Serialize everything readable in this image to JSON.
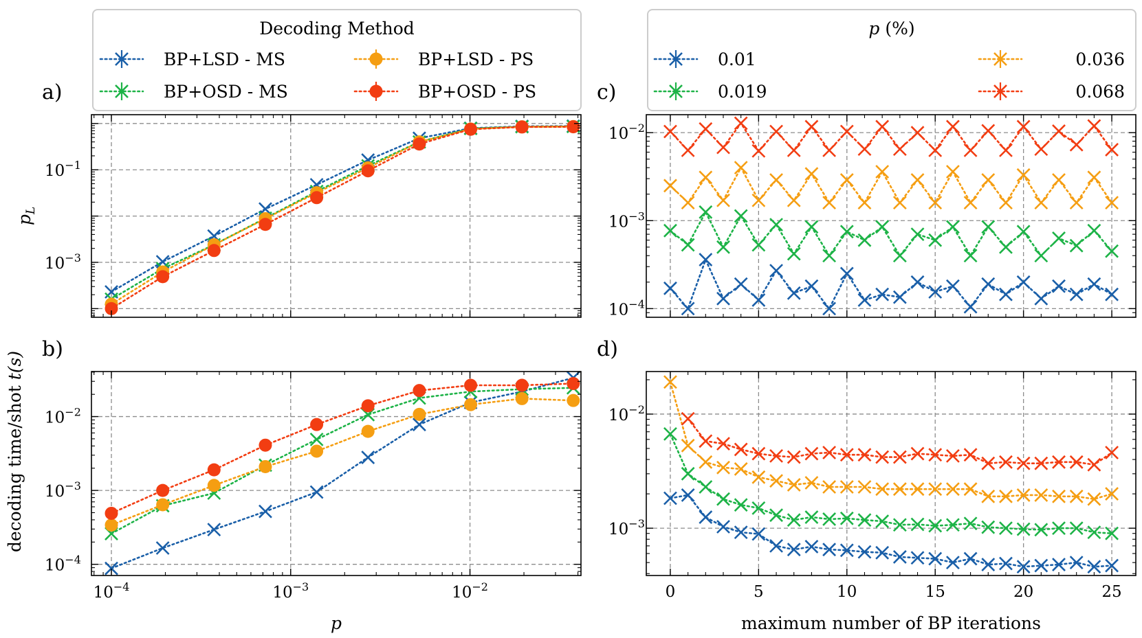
{
  "legends": {
    "methods": {
      "title": "Decoding Method",
      "entries": [
        {
          "label": "BP+LSD - MS",
          "color": "#1a5fa8",
          "marker": "x"
        },
        {
          "label": "BP+LSD - PS",
          "color": "#f59e12",
          "marker": "o"
        },
        {
          "label": "BP+OSD - MS",
          "color": "#1db347",
          "marker": "x"
        },
        {
          "label": "BP+OSD - PS",
          "color": "#f23d12",
          "marker": "o"
        }
      ]
    },
    "p_values": {
      "title_symbol": "p",
      "title_unit": "(%)",
      "entries": [
        {
          "label": "0.01",
          "color": "#1a5fa8"
        },
        {
          "label": "0.036",
          "color": "#f59e12"
        },
        {
          "label": "0.019",
          "color": "#1db347"
        },
        {
          "label": "0.068",
          "color": "#f23d12"
        }
      ]
    }
  },
  "chart_data": [
    {
      "panel": "a)",
      "type": "line",
      "xscale": "log",
      "yscale": "log",
      "ylabel_base": "p",
      "ylabel_sub": "L",
      "xlim": [
        7.74e-05,
        0.0416
      ],
      "ylim": [
        6.5e-05,
        1.55
      ],
      "x": [
        0.0001,
        0.0001933,
        0.0003737,
        0.0007224,
        0.0013964,
        0.0026994,
        0.0052182,
        0.0100873,
        0.0195,
        0.0377
      ],
      "series": [
        {
          "name": "BP+LSD - MS",
          "marker": "x",
          "values": [
            0.00023,
            0.00103,
            0.0037,
            0.0142,
            0.0475,
            0.162,
            0.48,
            0.79,
            0.87,
            0.88
          ]
        },
        {
          "name": "BP+OSD - MS",
          "marker": "x",
          "values": [
            0.00016,
            0.00073,
            0.0024,
            0.009,
            0.034,
            0.122,
            0.4,
            0.78,
            0.85,
            0.86
          ]
        },
        {
          "name": "BP+LSD - PS",
          "marker": "o",
          "values": [
            0.000125,
            0.00062,
            0.0024,
            0.0088,
            0.032,
            0.11,
            0.4,
            0.76,
            0.85,
            0.86
          ]
        },
        {
          "name": "BP+OSD - PS",
          "marker": "o",
          "values": [
            0.0001,
            0.00049,
            0.0018,
            0.0066,
            0.025,
            0.095,
            0.36,
            0.75,
            0.84,
            0.85
          ]
        }
      ],
      "ytick_labels": [
        {
          "value": 0.1,
          "base": "10",
          "exp": "−1"
        },
        {
          "value": 0.001,
          "base": "10",
          "exp": "−3"
        }
      ]
    },
    {
      "panel": "b)",
      "type": "line",
      "xscale": "log",
      "yscale": "log",
      "xlabel": "p",
      "ylabel_text": "decoding time/shot ",
      "ylabel_var": "t(s)",
      "xlim": [
        7.74e-05,
        0.0416
      ],
      "ylim": [
        7.05e-05,
        0.0407
      ],
      "x": [
        0.0001,
        0.0001933,
        0.0003737,
        0.0007224,
        0.0013964,
        0.0026994,
        0.0052182,
        0.0100873,
        0.0195,
        0.0377
      ],
      "series": [
        {
          "name": "BP+LSD - MS",
          "marker": "x",
          "values": [
            8.8e-05,
            0.000166,
            0.000295,
            0.00052,
            0.00095,
            0.0028,
            0.0078,
            0.0155,
            0.0218,
            0.0335
          ]
        },
        {
          "name": "BP+OSD - MS",
          "marker": "x",
          "values": [
            0.00026,
            0.00062,
            0.00092,
            0.0022,
            0.0049,
            0.0106,
            0.0178,
            0.0218,
            0.0235,
            0.0245
          ]
        },
        {
          "name": "BP+LSD - PS",
          "marker": "o",
          "values": [
            0.00034,
            0.00064,
            0.00117,
            0.0021,
            0.0034,
            0.0063,
            0.0107,
            0.0145,
            0.0175,
            0.0165
          ]
        },
        {
          "name": "BP+OSD - PS",
          "marker": "o",
          "values": [
            0.00049,
            0.001,
            0.0019,
            0.0041,
            0.0078,
            0.014,
            0.0225,
            0.0265,
            0.0265,
            0.028
          ]
        }
      ],
      "ytick_labels": [
        {
          "value": 0.01,
          "base": "10",
          "exp": "−2"
        },
        {
          "value": 0.001,
          "base": "10",
          "exp": "−3"
        },
        {
          "value": 0.0001,
          "base": "10",
          "exp": "−4"
        }
      ],
      "xtick_labels": [
        {
          "value": 0.0001,
          "base": "10",
          "exp": "−4"
        },
        {
          "value": 0.001,
          "base": "10",
          "exp": "−3"
        },
        {
          "value": 0.01,
          "base": "10",
          "exp": "−2"
        }
      ]
    },
    {
      "panel": "c)",
      "type": "line",
      "xscale": "linear",
      "yscale": "log",
      "xlim": [
        -1.36,
        26.36
      ],
      "ylim": [
        7.97e-05,
        0.016
      ],
      "x": [
        0,
        1,
        2,
        3,
        4,
        5,
        6,
        7,
        8,
        9,
        10,
        11,
        12,
        13,
        14,
        15,
        16,
        17,
        18,
        19,
        20,
        21,
        22,
        23,
        24,
        25
      ],
      "series": [
        {
          "name": "0.01",
          "marker": "x",
          "values": [
            0.00017,
            0.0001,
            0.00036,
            0.00013,
            0.00019,
            0.000125,
            0.00027,
            0.00015,
            0.00018,
            0.0001,
            0.00025,
            0.000125,
            0.000145,
            0.000135,
            0.0002,
            0.000155,
            0.00018,
            0.000105,
            0.00019,
            0.000145,
            0.0002,
            0.00013,
            0.00018,
            0.000145,
            0.00019,
            0.000145
          ]
        },
        {
          "name": "0.019",
          "marker": "x",
          "values": [
            0.00077,
            0.00053,
            0.00125,
            0.0005,
            0.00113,
            0.00053,
            0.0009,
            0.00042,
            0.00085,
            0.0004,
            0.00075,
            0.0006,
            0.00085,
            0.0004,
            0.0007,
            0.0006,
            0.00085,
            0.0004,
            0.00085,
            0.0005,
            0.00075,
            0.0004,
            0.00063,
            0.00052,
            0.00077,
            0.00045
          ]
        },
        {
          "name": "0.036",
          "marker": "x",
          "values": [
            0.0025,
            0.0016,
            0.0031,
            0.0017,
            0.004,
            0.0017,
            0.0029,
            0.0017,
            0.0034,
            0.0016,
            0.0029,
            0.0016,
            0.0036,
            0.0016,
            0.0029,
            0.0016,
            0.0036,
            0.0016,
            0.0029,
            0.0016,
            0.0033,
            0.0016,
            0.0029,
            0.0016,
            0.0031,
            0.0016
          ]
        },
        {
          "name": "0.068",
          "marker": "x",
          "values": [
            0.0103,
            0.0063,
            0.011,
            0.0068,
            0.0128,
            0.0062,
            0.0103,
            0.0063,
            0.0117,
            0.0063,
            0.0103,
            0.0065,
            0.0117,
            0.0065,
            0.01,
            0.0063,
            0.0117,
            0.0063,
            0.0105,
            0.0063,
            0.0117,
            0.0065,
            0.0104,
            0.0073,
            0.0119,
            0.0064
          ]
        }
      ],
      "ytick_labels": [
        {
          "value": 0.01,
          "base": "10",
          "exp": "−2"
        },
        {
          "value": 0.001,
          "base": "10",
          "exp": "−3"
        },
        {
          "value": 0.0001,
          "base": "10",
          "exp": "−4"
        }
      ]
    },
    {
      "panel": "d)",
      "type": "line",
      "xscale": "linear",
      "yscale": "log",
      "xlabel": "maximum number of BP iterations",
      "xlim": [
        -1.36,
        26.36
      ],
      "ylim": [
        0.000385,
        0.0236
      ],
      "x": [
        0,
        1,
        2,
        3,
        4,
        5,
        6,
        7,
        8,
        9,
        10,
        11,
        12,
        13,
        14,
        15,
        16,
        17,
        18,
        19,
        20,
        21,
        22,
        23,
        24,
        25
      ],
      "series": [
        {
          "name": "0.01",
          "marker": "x",
          "values": [
            0.00183,
            0.00195,
            0.00125,
            0.00103,
            0.00092,
            0.00089,
            0.0007,
            0.00065,
            0.00069,
            0.00065,
            0.00064,
            0.00062,
            0.00061,
            0.00056,
            0.00055,
            0.00054,
            0.0005,
            0.00054,
            0.00048,
            0.00049,
            0.00046,
            0.00047,
            0.00048,
            0.0005,
            0.00046,
            0.00047
          ]
        },
        {
          "name": "0.019",
          "marker": "x",
          "values": [
            0.0067,
            0.003,
            0.0023,
            0.0018,
            0.0016,
            0.0015,
            0.0013,
            0.00118,
            0.00125,
            0.0012,
            0.00122,
            0.00118,
            0.00115,
            0.00107,
            0.00108,
            0.00105,
            0.00107,
            0.0011,
            0.00102,
            0.001,
            0.00098,
            0.00097,
            0.001,
            0.001,
            0.00092,
            0.0009
          ]
        },
        {
          "name": "0.036",
          "marker": "x",
          "values": [
            0.0191,
            0.0053,
            0.0038,
            0.0034,
            0.0033,
            0.0028,
            0.0026,
            0.0024,
            0.0025,
            0.0023,
            0.0023,
            0.0023,
            0.0022,
            0.0022,
            0.0022,
            0.0022,
            0.0022,
            0.0022,
            0.0019,
            0.0019,
            0.00195,
            0.00195,
            0.0019,
            0.0019,
            0.0018,
            0.002
          ]
        },
        {
          "name": "0.068",
          "marker": "x",
          "values": [
            null,
            0.0091,
            0.0058,
            0.0055,
            0.0049,
            0.0045,
            0.0043,
            0.0042,
            0.0045,
            0.0046,
            0.0044,
            0.0044,
            0.0042,
            0.0042,
            0.0045,
            0.0044,
            0.0043,
            0.0044,
            0.0037,
            0.0038,
            0.0037,
            0.0037,
            0.0038,
            0.0038,
            0.0036,
            0.0046
          ]
        }
      ],
      "ytick_labels": [
        {
          "value": 0.01,
          "base": "10",
          "exp": "−2"
        },
        {
          "value": 0.001,
          "base": "10",
          "exp": "−3"
        }
      ],
      "xtick_labels": [
        "0",
        "5",
        "10",
        "15",
        "20",
        "25"
      ]
    }
  ]
}
